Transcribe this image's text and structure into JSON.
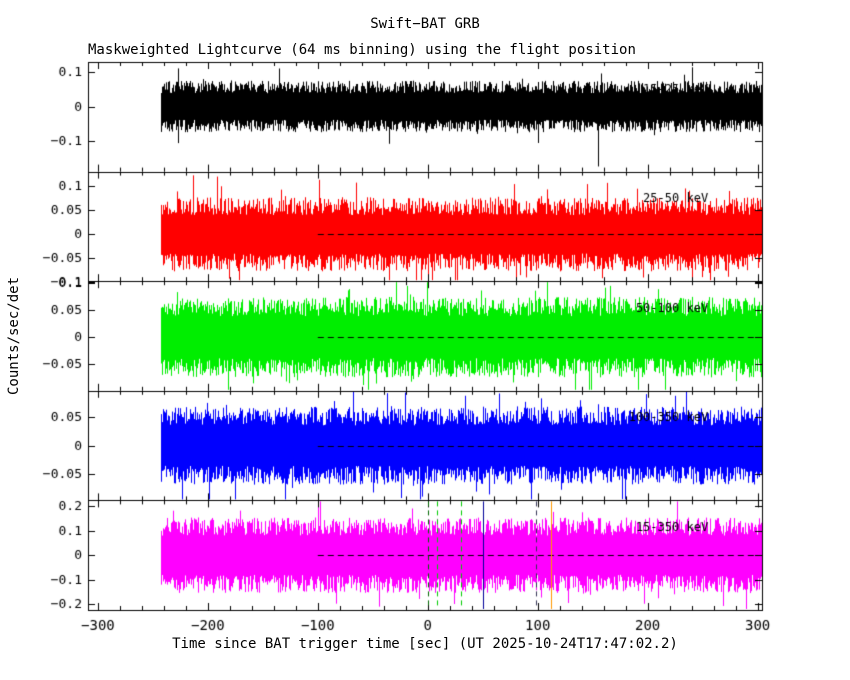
{
  "title": "Swift−BAT GRB",
  "subtitle": "Maskweighted Lightcurve (64 ms binning) using the flight position",
  "y_axis": {
    "label": "Counts/sec/det"
  },
  "x_axis": {
    "label": "Time since BAT trigger time [sec] (UT 2025-10-24T17:47:02.2)",
    "minor_tick_step": 20,
    "ticks": [
      {
        "value": -300,
        "label": "−300"
      },
      {
        "value": -200,
        "label": "−200"
      },
      {
        "value": -100,
        "label": "−100"
      },
      {
        "value": 0,
        "label": "0"
      },
      {
        "value": 100,
        "label": "100"
      },
      {
        "value": 200,
        "label": "200"
      },
      {
        "value": 300,
        "label": "300"
      }
    ]
  },
  "chart_data": {
    "type": "line",
    "description": "Five stacked mask-weighted BAT lightcurve panels (64 ms binning), noise-like count rates around zero in counts/sec/det versus time since trigger.",
    "grid": false,
    "legend": null,
    "xlim": [
      -309,
      304
    ],
    "x_data_range": [
      -243,
      304
    ],
    "binning_ms": 64,
    "zero_dash": {
      "t_start": -100,
      "color": "#000000"
    },
    "panels": [
      {
        "band_label": "15-25 keV",
        "color": "#000000",
        "ylim": [
          -0.19,
          0.13
        ],
        "noise_sigma": 0.03,
        "seed": 7,
        "zero_dash": false,
        "spikes": [
          {
            "t": 155,
            "y": -0.175
          }
        ],
        "yticks": [
          {
            "value": 0.1,
            "label": "0.1"
          },
          {
            "value": 0,
            "label": "0"
          },
          {
            "value": -0.1,
            "label": "−0.1"
          }
        ]
      },
      {
        "band_label": "25-50 keV",
        "color": "#ff0000",
        "ylim": [
          -0.098,
          0.131
        ],
        "noise_sigma": 0.031,
        "seed": 13,
        "zero_dash": true,
        "spikes": [],
        "yticks": [
          {
            "value": 0.1,
            "label": "0.1"
          },
          {
            "value": 0.05,
            "label": "0.05"
          },
          {
            "value": 0,
            "label": "0"
          },
          {
            "value": -0.05,
            "label": "−0.05"
          },
          {
            "value": -0.1,
            "label": "−0.1"
          }
        ]
      },
      {
        "band_label": "50-100 keV",
        "color": "#00ee00",
        "ylim": [
          -0.1,
          0.104
        ],
        "noise_sigma": 0.03,
        "seed": 21,
        "zero_dash": true,
        "spikes": [],
        "yticks": [
          {
            "value": 0.1,
            "label": "0.1"
          },
          {
            "value": 0.05,
            "label": "0.05"
          },
          {
            "value": 0,
            "label": "0"
          },
          {
            "value": -0.05,
            "label": "−0.05"
          }
        ]
      },
      {
        "band_label": "100-350 keV",
        "color": "#0000ff",
        "ylim": [
          -0.095,
          0.095
        ],
        "noise_sigma": 0.027,
        "seed": 42,
        "zero_dash": true,
        "spikes": [],
        "yticks": [
          {
            "value": 0.05,
            "label": "0.05"
          },
          {
            "value": 0,
            "label": "0"
          },
          {
            "value": -0.05,
            "label": "−0.05"
          }
        ]
      },
      {
        "band_label": "15-350 keV",
        "color": "#ff00ff",
        "ylim": [
          -0.225,
          0.225
        ],
        "noise_sigma": 0.062,
        "seed": 99,
        "zero_dash": true,
        "spikes": [],
        "yticks": [
          {
            "value": 0.2,
            "label": "0.2"
          },
          {
            "value": 0.1,
            "label": "0.1"
          },
          {
            "value": 0,
            "label": "0"
          },
          {
            "value": -0.1,
            "label": "−0.1"
          },
          {
            "value": -0.2,
            "label": "−0.2"
          }
        ]
      }
    ],
    "markers": [
      {
        "panel": 4,
        "t": 0,
        "color": "#006600",
        "style": "dashed"
      },
      {
        "panel": 4,
        "t": 8,
        "color": "#00cc00",
        "style": "dashed"
      },
      {
        "panel": 4,
        "t": 30,
        "color": "#00cc00",
        "style": "dashed"
      },
      {
        "panel": 4,
        "t": 50,
        "color": "#000099",
        "style": "solid"
      },
      {
        "panel": 4,
        "t": 98,
        "color": "#333355",
        "style": "dashed"
      },
      {
        "panel": 4,
        "t": 112,
        "color": "#ff9900",
        "style": "solid"
      }
    ]
  }
}
